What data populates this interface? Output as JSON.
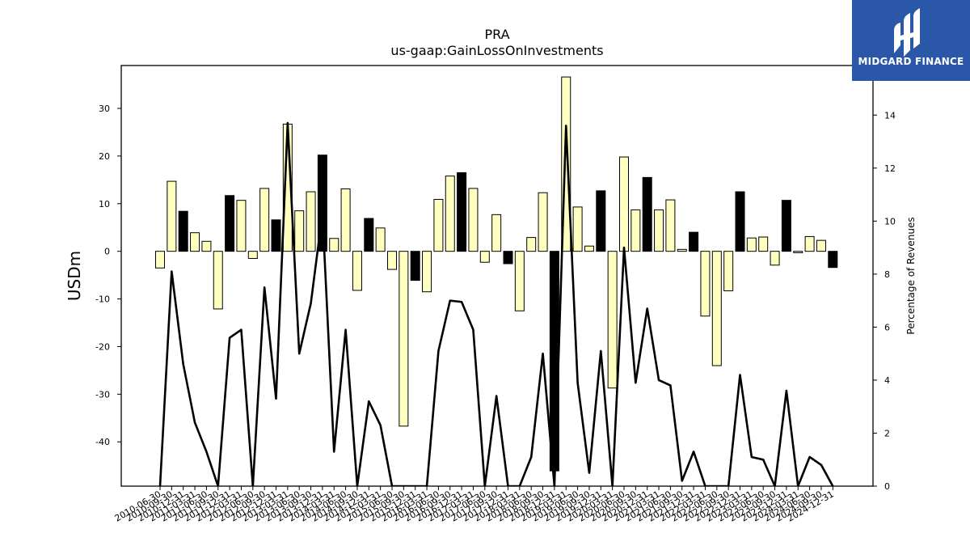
{
  "chart_data": {
    "type": "bar",
    "title": "PRA",
    "subtitle": "us-gaap:GainLossOnInvestments",
    "ylabel": "USDm",
    "ylabel_right": "Percentage of Revenues",
    "ylim": [
      -49.3,
      39
    ],
    "ylim_right": [
      0,
      15.87
    ],
    "yticks": [
      -40,
      -30,
      -20,
      -10,
      0,
      10,
      20,
      30
    ],
    "yticks_right": [
      0,
      2,
      4,
      6,
      8,
      10,
      12,
      14
    ],
    "categories": [
      "2010-06-30",
      "2010-09-30",
      "2010-12-31",
      "2011-03-31",
      "2011-06-30",
      "2011-09-30",
      "2011-12-31",
      "2012-03-31",
      "2012-06-30",
      "2012-09-30",
      "2012-12-31",
      "2013-03-31",
      "2013-06-30",
      "2013-09-30",
      "2013-12-31",
      "2014-03-31",
      "2014-06-30",
      "2014-09-30",
      "2014-12-31",
      "2015-03-31",
      "2015-06-30",
      "2015-09-30",
      "2015-12-31",
      "2016-03-31",
      "2016-06-30",
      "2016-09-30",
      "2016-12-31",
      "2017-03-31",
      "2017-06-30",
      "2017-09-30",
      "2017-12-31",
      "2018-03-31",
      "2018-06-30",
      "2018-09-30",
      "2018-12-31",
      "2019-03-31",
      "2019-06-30",
      "2019-09-30",
      "2019-12-31",
      "2020-03-31",
      "2020-06-30",
      "2020-09-30",
      "2020-12-31",
      "2021-03-31",
      "2021-06-30",
      "2021-09-30",
      "2021-12-31",
      "2022-03-31",
      "2022-06-30",
      "2022-09-30",
      "2022-12-31",
      "2023-03-31",
      "2023-06-30",
      "2023-09-30",
      "2023-12-31",
      "2024-03-31",
      "2024-06-30",
      "2024-09-30",
      "2024-12-31"
    ],
    "series": [
      {
        "kind": "bar",
        "values": [
          -3.5,
          14.7,
          8.4,
          3.9,
          2.1,
          -12.1,
          11.7,
          10.7,
          -1.5,
          13.2,
          6.6,
          26.7,
          8.5,
          12.5,
          20.2,
          2.7,
          13.1,
          -8.2,
          6.9,
          4.9,
          -3.8,
          -36.7,
          -6.1,
          -8.5,
          10.9,
          15.8,
          16.5,
          13.2,
          -2.3,
          7.7,
          -2.6,
          -12.5,
          2.9,
          12.3,
          -46.1,
          36.6,
          9.3,
          1.1,
          12.7,
          -28.7,
          19.8,
          8.7,
          15.5,
          8.7,
          10.8,
          0.4,
          4.0,
          -13.6,
          -24.0,
          -8.3,
          12.5,
          2.8,
          3.0,
          -2.9,
          10.7,
          -0.3,
          3.1,
          2.3,
          -3.4
        ],
        "colors": [
          "#ffffc0",
          "#ffffc0",
          "#000000",
          "#ffffc0",
          "#ffffc0",
          "#ffffc0",
          "#000000",
          "#ffffc0",
          "#ffffc0",
          "#ffffc0",
          "#000000",
          "#ffffc0",
          "#ffffc0",
          "#ffffc0",
          "#000000",
          "#ffffc0",
          "#ffffc0",
          "#ffffc0",
          "#000000",
          "#ffffc0",
          "#ffffc0",
          "#ffffc0",
          "#000000",
          "#ffffc0",
          "#ffffc0",
          "#ffffc0",
          "#000000",
          "#ffffc0",
          "#ffffc0",
          "#ffffc0",
          "#000000",
          "#ffffc0",
          "#ffffc0",
          "#ffffc0",
          "#000000",
          "#ffffc0",
          "#ffffc0",
          "#ffffc0",
          "#000000",
          "#ffffc0",
          "#ffffc0",
          "#ffffc0",
          "#000000",
          "#ffffc0",
          "#ffffc0",
          "#ffffc0",
          "#000000",
          "#ffffc0",
          "#ffffc0",
          "#ffffc0",
          "#000000",
          "#ffffc0",
          "#ffffc0",
          "#ffffc0",
          "#000000",
          "#ffffc0",
          "#ffffc0",
          "#ffffc0",
          "#000000"
        ]
      },
      {
        "kind": "line",
        "axis": "right",
        "color": "#000000",
        "values": [
          0,
          8.1,
          4.6,
          2.4,
          1.3,
          0,
          5.6,
          5.9,
          0,
          7.5,
          3.3,
          13.7,
          5.0,
          6.9,
          10.3,
          1.3,
          5.9,
          0,
          3.2,
          2.3,
          0,
          0,
          0,
          0,
          5.1,
          7.0,
          6.95,
          5.9,
          0,
          3.4,
          0,
          0,
          1.1,
          5.0,
          0,
          13.6,
          3.9,
          0.5,
          5.1,
          0,
          9.0,
          3.9,
          6.7,
          4.0,
          3.8,
          0.2,
          1.3,
          0,
          0,
          0,
          4.2,
          1.1,
          1.0,
          0,
          3.6,
          0,
          1.1,
          0.8,
          0
        ]
      }
    ],
    "grid": false,
    "legend": "none"
  },
  "logo": {
    "text": "MIDGARD FINANCE",
    "bg_color": "#2b57a8"
  }
}
